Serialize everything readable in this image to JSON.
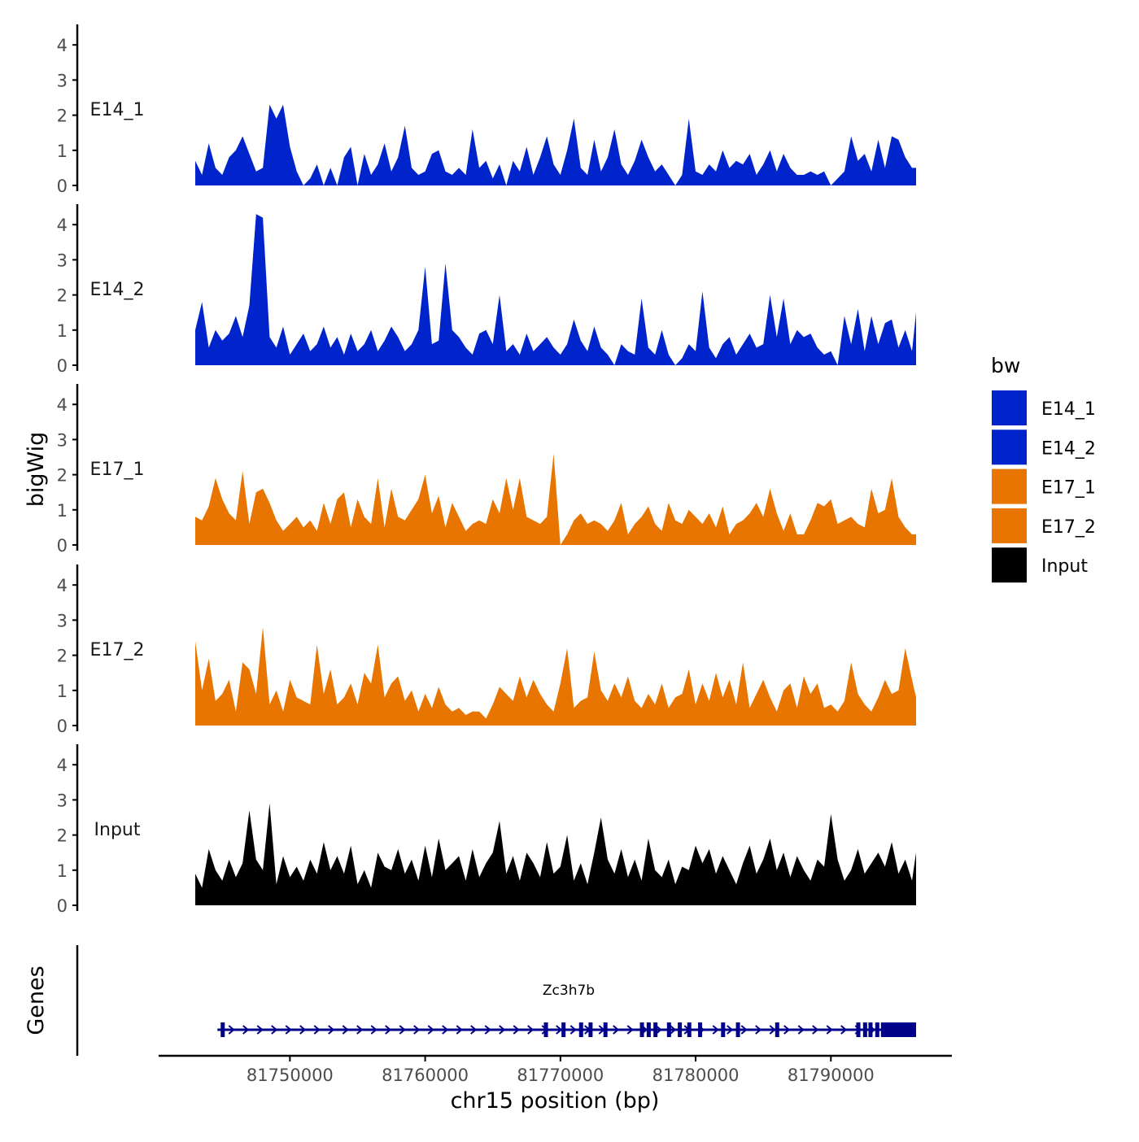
{
  "chart_data": {
    "type": "area",
    "xlabel": "chr15 position (bp)",
    "ylabel": "bigWig",
    "xlim": [
      81740000,
      81798000
    ],
    "x_ticks": [
      81750000,
      81760000,
      81770000,
      81780000,
      81790000
    ],
    "x_tick_labels": [
      "81750000",
      "81760000",
      "81770000",
      "81780000",
      "81790000"
    ],
    "ylim": [
      0,
      4.5
    ],
    "y_ticks": [
      0,
      1,
      2,
      3,
      4
    ],
    "y_tick_labels": [
      "0",
      "1",
      "2",
      "3",
      "4"
    ],
    "legend": {
      "title": "bw",
      "position": "right",
      "entries": [
        {
          "label": "E14_1",
          "color": "#0024CC"
        },
        {
          "label": "E14_2",
          "color": "#0024CC"
        },
        {
          "label": "E17_1",
          "color": "#E87500"
        },
        {
          "label": "E17_2",
          "color": "#E87500"
        },
        {
          "label": "Input",
          "color": "#000000"
        }
      ]
    },
    "tracks_x": [
      81743000,
      81743500,
      81744000,
      81744500,
      81745000,
      81745500,
      81746000,
      81746500,
      81747000,
      81747500,
      81748000,
      81748500,
      81749000,
      81749500,
      81750000,
      81750500,
      81751000,
      81751500,
      81752000,
      81752500,
      81753000,
      81753500,
      81754000,
      81754500,
      81755000,
      81755500,
      81756000,
      81756500,
      81757000,
      81757500,
      81758000,
      81758500,
      81759000,
      81759500,
      81760000,
      81760500,
      81761000,
      81761500,
      81762000,
      81762500,
      81763000,
      81763500,
      81764000,
      81764500,
      81765000,
      81765500,
      81766000,
      81766500,
      81767000,
      81767500,
      81768000,
      81768500,
      81769000,
      81769500,
      81770000,
      81770500,
      81771000,
      81771500,
      81772000,
      81772500,
      81773000,
      81773500,
      81774000,
      81774500,
      81775000,
      81775500,
      81776000,
      81776500,
      81777000,
      81777500,
      81778000,
      81778500,
      81779000,
      81779500,
      81780000,
      81780500,
      81781000,
      81781500,
      81782000,
      81782500,
      81783000,
      81783500,
      81784000,
      81784500,
      81785000,
      81785500,
      81786000,
      81786500,
      81787000,
      81787500,
      81788000,
      81788500,
      81789000,
      81789500,
      81790000,
      81790500,
      81791000,
      81791500,
      81792000,
      81792500,
      81793000,
      81793500,
      81794000,
      81794500,
      81795000,
      81795500,
      81796000,
      81796300
    ],
    "series": [
      {
        "name": "E14_1",
        "color": "#0024CC",
        "values": [
          0.7,
          0.3,
          1.2,
          0.5,
          0.3,
          0.8,
          1.0,
          1.4,
          0.9,
          0.4,
          0.5,
          2.3,
          1.9,
          2.3,
          1.1,
          0.4,
          0,
          0.2,
          0.6,
          0,
          0.5,
          0,
          0.8,
          1.1,
          0,
          0.9,
          0.3,
          0.6,
          1.2,
          0.4,
          0.8,
          1.7,
          0.5,
          0.3,
          0.4,
          0.9,
          1.0,
          0.4,
          0.3,
          0.5,
          0.3,
          1.6,
          0.5,
          0.7,
          0.2,
          0.6,
          0,
          0.7,
          0.4,
          1.1,
          0.3,
          0.8,
          1.4,
          0.6,
          0.3,
          1.0,
          1.9,
          0.5,
          0.3,
          1.3,
          0.4,
          0.8,
          1.6,
          0.6,
          0.3,
          0.7,
          1.3,
          0.8,
          0.4,
          0.6,
          0.3,
          0,
          0.3,
          1.9,
          0.4,
          0.3,
          0.6,
          0.4,
          1.0,
          0.5,
          0.7,
          0.6,
          0.9,
          0.3,
          0.6,
          1.0,
          0.4,
          0.9,
          0.5,
          0.3,
          0.3,
          0.4,
          0.3,
          0.4,
          0,
          0.2,
          0.4,
          1.4,
          0.7,
          0.9,
          0.4,
          1.3,
          0.5,
          1.4,
          1.3,
          0.8,
          0.5,
          0.5
        ]
      },
      {
        "name": "E14_2",
        "color": "#0024CC",
        "values": [
          1.0,
          1.8,
          0.5,
          1.0,
          0.7,
          0.9,
          1.4,
          0.8,
          1.7,
          4.3,
          4.2,
          0.8,
          0.5,
          1.1,
          0.3,
          0.6,
          0.9,
          0.4,
          0.6,
          1.1,
          0.5,
          0.8,
          0.3,
          0.9,
          0.4,
          0.6,
          1.0,
          0.4,
          0.7,
          1.1,
          0.8,
          0.4,
          0.6,
          1.0,
          2.8,
          0.6,
          0.7,
          2.9,
          1.0,
          0.8,
          0.5,
          0.3,
          0.9,
          1.0,
          0.6,
          2.0,
          0.4,
          0.6,
          0.3,
          0.9,
          0.4,
          0.6,
          0.8,
          0.5,
          0.3,
          0.6,
          1.3,
          0.7,
          0.4,
          1.1,
          0.5,
          0.3,
          0,
          0.6,
          0.4,
          0.3,
          1.9,
          0.5,
          0.3,
          1.0,
          0.3,
          0,
          0.2,
          0.6,
          0.4,
          2.1,
          0.5,
          0.2,
          0.6,
          0.8,
          0.3,
          0.6,
          0.9,
          0.5,
          0.6,
          2.0,
          0.8,
          1.9,
          0.6,
          1.0,
          0.8,
          0.9,
          0.5,
          0.3,
          0.4,
          0,
          1.4,
          0.6,
          1.6,
          0.4,
          1.4,
          0.6,
          1.2,
          1.3,
          0.5,
          1.0,
          0.4,
          1.5
        ]
      },
      {
        "name": "E17_1",
        "color": "#E87500",
        "values": [
          0.8,
          0.7,
          1.1,
          1.9,
          1.3,
          0.9,
          0.7,
          2.1,
          0.6,
          1.5,
          1.6,
          1.2,
          0.7,
          0.4,
          0.6,
          0.8,
          0.5,
          0.7,
          0.4,
          1.2,
          0.6,
          1.3,
          1.5,
          0.5,
          1.3,
          0.8,
          0.6,
          1.9,
          0.5,
          1.6,
          0.8,
          0.7,
          1.0,
          1.3,
          2.0,
          0.9,
          1.4,
          0.5,
          1.2,
          0.8,
          0.4,
          0.6,
          0.7,
          0.6,
          1.3,
          0.9,
          1.9,
          1.0,
          1.9,
          0.8,
          0.7,
          0.6,
          0.8,
          2.6,
          0,
          0.3,
          0.7,
          0.9,
          0.6,
          0.7,
          0.6,
          0.4,
          0.7,
          1.2,
          0.3,
          0.6,
          0.8,
          1.1,
          0.6,
          0.4,
          1.2,
          0.7,
          0.6,
          1.0,
          0.8,
          0.6,
          0.9,
          0.5,
          1.1,
          0.3,
          0.6,
          0.7,
          0.9,
          1.2,
          0.8,
          1.6,
          0.9,
          0.4,
          0.9,
          0.3,
          0.3,
          0.7,
          1.2,
          1.1,
          1.3,
          0.6,
          0.7,
          0.8,
          0.6,
          0.5,
          1.6,
          0.9,
          1.0,
          1.9,
          0.8,
          0.5,
          0.3,
          0.3
        ]
      },
      {
        "name": "E17_2",
        "color": "#E87500",
        "values": [
          2.4,
          1.0,
          1.9,
          0.7,
          0.9,
          1.3,
          0.4,
          1.8,
          1.6,
          0.9,
          2.8,
          0.6,
          1.0,
          0.4,
          1.3,
          0.8,
          0.7,
          0.6,
          2.3,
          0.9,
          1.6,
          0.6,
          0.8,
          1.2,
          0.6,
          1.5,
          1.2,
          2.3,
          0.8,
          1.2,
          1.4,
          0.7,
          1.0,
          0.4,
          0.9,
          0.5,
          1.1,
          0.6,
          0.4,
          0.5,
          0.3,
          0.4,
          0.4,
          0.2,
          0.6,
          1.1,
          0.9,
          0.7,
          1.4,
          0.8,
          1.3,
          0.9,
          0.6,
          0.4,
          1.2,
          2.2,
          0.5,
          0.7,
          0.8,
          2.1,
          1.0,
          0.7,
          1.2,
          0.8,
          1.4,
          0.7,
          0.5,
          0.9,
          0.6,
          1.2,
          0.5,
          0.8,
          0.9,
          1.6,
          0.6,
          1.2,
          0.7,
          1.5,
          0.8,
          1.3,
          0.6,
          1.8,
          0.5,
          0.9,
          1.3,
          0.8,
          0.4,
          1.0,
          1.2,
          0.5,
          1.4,
          0.9,
          1.2,
          0.5,
          0.6,
          0.4,
          0.7,
          1.8,
          0.9,
          0.6,
          0.4,
          0.8,
          1.3,
          0.9,
          1.0,
          2.2,
          1.3,
          0.8
        ]
      },
      {
        "name": "Input",
        "color": "#000000",
        "values": [
          0.9,
          0.5,
          1.6,
          1.0,
          0.7,
          1.3,
          0.8,
          1.2,
          2.7,
          1.3,
          1.0,
          2.9,
          0.6,
          1.4,
          0.8,
          1.1,
          0.7,
          1.3,
          0.9,
          1.8,
          1.0,
          1.4,
          0.9,
          1.7,
          0.6,
          1.0,
          0.5,
          1.5,
          1.1,
          1.0,
          1.6,
          0.9,
          1.3,
          0.7,
          1.7,
          0.8,
          1.9,
          1.0,
          1.2,
          1.4,
          0.7,
          1.6,
          0.8,
          1.2,
          1.5,
          2.4,
          0.9,
          1.4,
          0.7,
          1.5,
          1.2,
          0.8,
          1.8,
          0.9,
          1.1,
          2.0,
          0.7,
          1.2,
          0.6,
          1.5,
          2.5,
          1.3,
          0.9,
          1.6,
          0.8,
          1.3,
          0.7,
          1.9,
          1.0,
          0.8,
          1.3,
          0.6,
          1.1,
          1.0,
          1.7,
          1.2,
          1.6,
          0.9,
          1.4,
          1.0,
          0.6,
          1.2,
          1.7,
          0.9,
          1.3,
          1.9,
          1.0,
          1.5,
          0.8,
          1.4,
          1.0,
          0.7,
          1.3,
          1.1,
          2.6,
          1.3,
          0.7,
          1.0,
          1.6,
          0.9,
          1.2,
          1.5,
          1.1,
          1.8,
          0.9,
          1.3,
          0.7,
          1.5
        ]
      }
    ],
    "genes": {
      "label": "Genes",
      "color": "#00008B",
      "gene_name": "Zc3h7b",
      "start": 81745000,
      "end": 81796300,
      "strand": "+",
      "exons": [
        81745000,
        81768900,
        81770200,
        81771500,
        81772200,
        81773300,
        81776000,
        81776500,
        81777000,
        81778000,
        81778800,
        81779500,
        81780300,
        81782000,
        81783100,
        81786000,
        81792000,
        81792500,
        81792900,
        81793400
      ],
      "utr_block": [
        81793700,
        81796300
      ]
    }
  }
}
